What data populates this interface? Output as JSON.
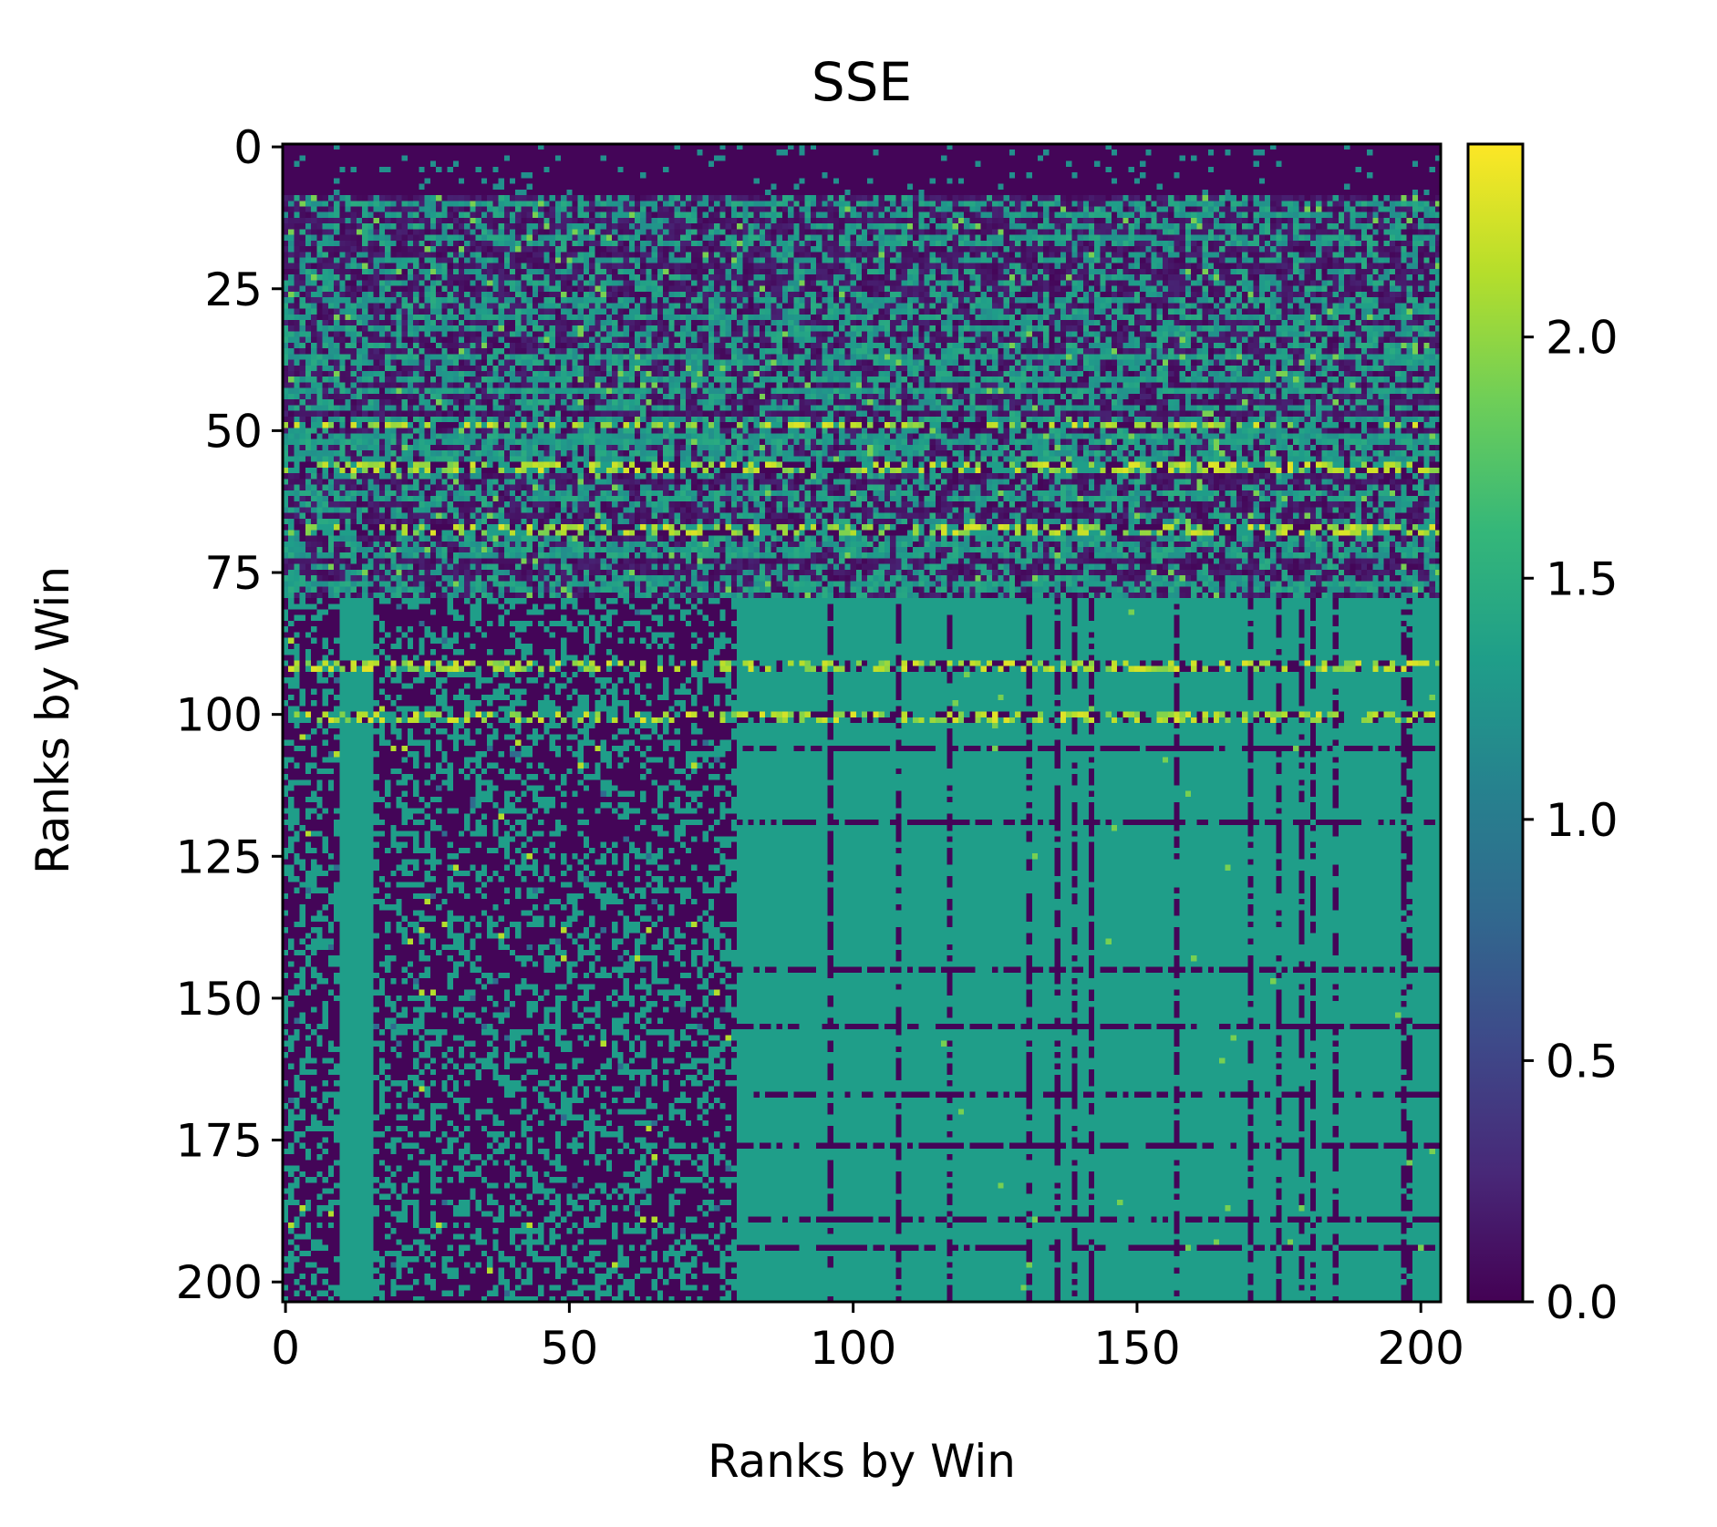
{
  "chart_data": {
    "type": "heatmap",
    "title": "SSE",
    "xlabel": "Ranks by Win",
    "ylabel": "Ranks by Win",
    "xlim": [
      0,
      203
    ],
    "ylim": [
      0,
      203
    ],
    "y_inverted": true,
    "n_rows": 204,
    "n_cols": 204,
    "x_ticks": [
      0,
      50,
      100,
      150,
      200
    ],
    "y_ticks": [
      0,
      25,
      50,
      75,
      100,
      125,
      150,
      175,
      200
    ],
    "colormap": "viridis",
    "color_range": [
      0.0,
      2.4
    ],
    "colorbar_ticks": [
      "0.0",
      "0.5",
      "1.0",
      "1.5",
      "2.0"
    ],
    "colorbar_tick_values": [
      0.0,
      0.5,
      1.0,
      1.5,
      2.0
    ],
    "approx_structure": {
      "base_plateau_value": 1.33,
      "low_value": 0.03,
      "top_rows_low": [
        0,
        8
      ],
      "hot_rows": [
        49,
        56,
        57,
        67,
        68,
        91,
        92,
        100,
        101
      ],
      "hot_value": 2.3,
      "low_block_rows": [
        80,
        203
      ],
      "low_block_cols": [
        0,
        79
      ],
      "teal_cols": [
        10,
        11,
        12,
        13,
        14,
        15
      ]
    }
  },
  "colors": {
    "viridis": [
      "#440154",
      "#482878",
      "#3e4989",
      "#31688e",
      "#26828e",
      "#1f9e89",
      "#35b779",
      "#6ece58",
      "#b5de2b",
      "#fde725"
    ],
    "axis": "#000000",
    "background": "#ffffff"
  }
}
